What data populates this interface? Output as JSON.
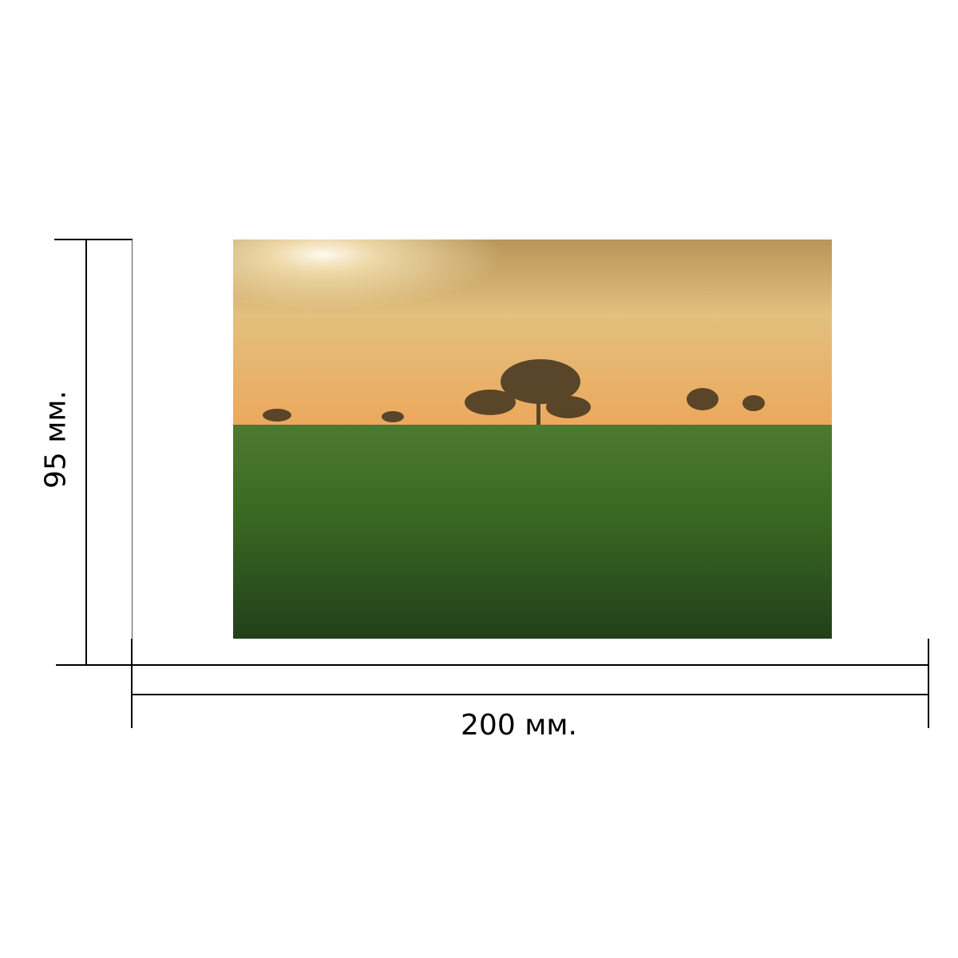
{
  "dimensions": {
    "width_label": "200 мм.",
    "height_label": "95 мм."
  },
  "photo": {
    "subject": "landscape-photo",
    "colors": {
      "sky_top": "#c9a45e",
      "sky_bottom": "#e8a85a",
      "grass": "#2f5a1c",
      "sun": "#fff6dc"
    }
  }
}
